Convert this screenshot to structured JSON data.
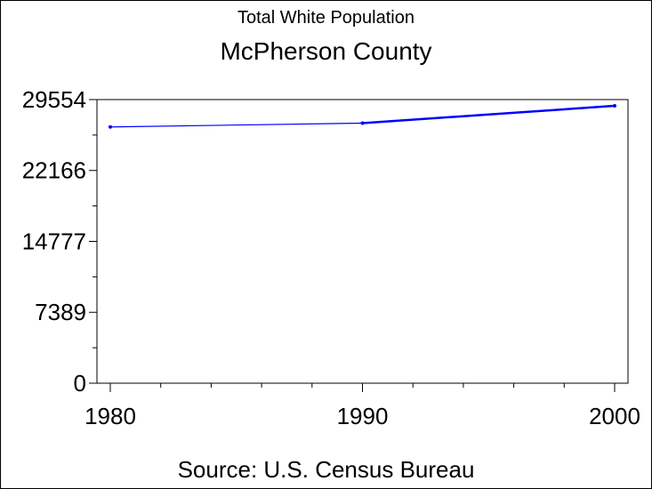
{
  "chart_data": {
    "type": "line",
    "title": "McPherson County",
    "subtitle": "Total White Population",
    "source": "Source: U.S. Census Bureau",
    "xlabel": "",
    "ylabel": "",
    "x": [
      1980,
      1990,
      2000
    ],
    "series": [
      {
        "values": [
          26700,
          27100,
          28900
        ],
        "color": "#0000ff"
      }
    ],
    "xlim": [
      1980,
      2000
    ],
    "ylim": [
      0,
      29554
    ],
    "yticks": [
      0,
      7389,
      14777,
      22166,
      29554
    ],
    "ytick_labels": [
      "0",
      "7389",
      "14777",
      "22166",
      "29554"
    ],
    "xticks": [
      1980,
      1990,
      2000
    ],
    "xtick_labels": [
      "1980",
      "1990",
      "2000"
    ],
    "grid": false,
    "legend": "none"
  }
}
